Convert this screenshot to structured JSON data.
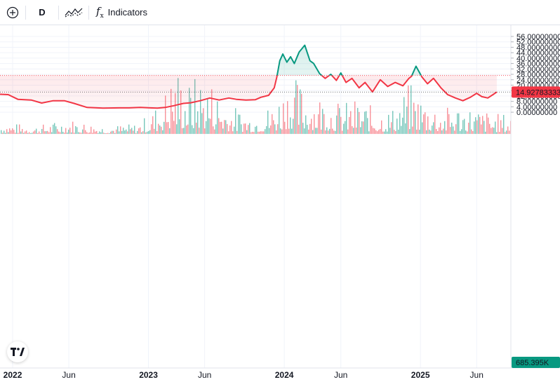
{
  "toolbar": {
    "add_icon": "plus-circle-icon",
    "interval_label": "D",
    "compare_icon": "compare-lines-icon",
    "indicators_icon": "fx-icon",
    "indicators_label": "Indicators"
  },
  "colors": {
    "up": "#089981",
    "down": "#f23645",
    "up_fill": "#e8f5f1",
    "down_fill": "#fde4e6",
    "grid": "#f0f3fa",
    "axis_text": "#131722"
  },
  "logo": {
    "icon": "tradingview-logo-icon"
  },
  "chart_data": {
    "type": "line",
    "baseline_value": 27.2,
    "ylim": [
      0,
      58
    ],
    "y_ticks": [
      "56.00000000",
      "52.00000000",
      "48.00000000",
      "44.00000000",
      "40.00000000",
      "36.00000000",
      "32.00000000",
      "28.00000000",
      "24.00000000",
      "20.00000000",
      "16.00000000",
      "12.00000000",
      "8.00000000",
      "4.00000000",
      "0.00000000"
    ],
    "x_ticks": [
      {
        "label": "2022",
        "year": true
      },
      {
        "label": "Jun",
        "year": false
      },
      {
        "label": "2023",
        "year": true
      },
      {
        "label": "Jun",
        "year": false
      },
      {
        "label": "2024",
        "year": true
      },
      {
        "label": "Jun",
        "year": false
      },
      {
        "label": "2025",
        "year": true
      },
      {
        "label": "Jun",
        "year": false
      }
    ],
    "last_price": 14.9,
    "last_price_label": "14.92783333",
    "volume_label": "685.395K",
    "price_series": {
      "x": [
        "2021-09-01",
        "2021-10-10",
        "2021-11-10",
        "2021-12-20",
        "2022-01-15",
        "2022-02-20",
        "2022-03-20",
        "2022-04-20",
        "2022-05-20",
        "2022-06-15",
        "2022-07-20",
        "2022-09-01",
        "2022-10-15",
        "2022-11-10",
        "2022-12-10",
        "2023-01-05",
        "2023-01-25",
        "2023-02-15",
        "2023-03-10",
        "2023-04-05",
        "2023-04-25",
        "2023-05-20",
        "2023-06-15",
        "2023-07-10",
        "2023-08-05",
        "2023-08-25",
        "2023-09-20",
        "2023-10-15",
        "2023-10-30",
        "2023-11-20",
        "2023-12-05",
        "2023-12-12",
        "2023-12-20",
        "2023-12-28",
        "2024-01-08",
        "2024-01-18",
        "2024-01-28",
        "2024-02-10",
        "2024-02-25",
        "2024-03-10",
        "2024-03-20",
        "2024-04-05",
        "2024-04-20",
        "2024-05-05",
        "2024-05-20",
        "2024-06-01",
        "2024-06-15",
        "2024-07-01",
        "2024-07-20",
        "2024-08-05",
        "2024-08-25",
        "2024-09-15",
        "2024-10-05",
        "2024-10-25",
        "2024-11-15",
        "2024-12-01",
        "2024-12-08",
        "2024-12-20",
        "2025-01-05",
        "2025-01-20",
        "2025-02-05",
        "2025-02-25",
        "2025-03-15",
        "2025-04-05",
        "2025-04-25",
        "2025-05-15",
        "2025-06-01",
        "2025-06-15",
        "2025-07-01",
        "2025-07-15",
        "2025-07-25"
      ],
      "y": [
        11.5,
        12.5,
        13.5,
        13.0,
        9.5,
        9.0,
        6.8,
        8.5,
        8.5,
        6.5,
        3.5,
        3.0,
        3.2,
        3.2,
        3.5,
        3.2,
        3.0,
        3.5,
        4.8,
        6.5,
        7.0,
        8.5,
        10.5,
        9.0,
        10.5,
        9.5,
        9.0,
        9.2,
        11.0,
        12.5,
        18.0,
        26.0,
        38.0,
        43.0,
        37.0,
        41.0,
        36.0,
        44.5,
        49.5,
        38.0,
        36.0,
        28.5,
        25.0,
        28.0,
        23.5,
        29.0,
        22.0,
        25.0,
        18.0,
        22.0,
        15.0,
        24.0,
        19.0,
        22.0,
        19.5,
        25.0,
        26.5,
        34.0,
        26.0,
        21.0,
        25.0,
        18.0,
        13.0,
        10.5,
        8.5,
        11.0,
        14.0,
        11.5,
        10.5,
        13.0,
        14.9
      ]
    },
    "volume_series": {
      "x": [
        "2021-09-01",
        "2021-12-01",
        "2022-03-01",
        "2022-06-01",
        "2022-09-01",
        "2022-12-01",
        "2023-01-15",
        "2023-02-15",
        "2023-03-15",
        "2023-04-15",
        "2023-05-15",
        "2023-06-15",
        "2023-08-01",
        "2023-10-01",
        "2023-12-01",
        "2024-01-15",
        "2024-03-01",
        "2024-04-15",
        "2024-06-01",
        "2024-07-15",
        "2024-09-01",
        "2024-10-15",
        "2024-12-01",
        "2025-01-15",
        "2025-03-01",
        "2025-04-15",
        "2025-06-01",
        "2025-07-25"
      ],
      "y": [
        0.8,
        1.2,
        0.8,
        1.5,
        0.8,
        1.0,
        2.5,
        4.5,
        7.0,
        5.0,
        6.0,
        5.5,
        3.0,
        2.0,
        3.0,
        6.0,
        4.5,
        4.0,
        3.0,
        3.5,
        2.5,
        2.5,
        5.0,
        3.5,
        2.5,
        3.0,
        2.5,
        2.0
      ]
    }
  }
}
